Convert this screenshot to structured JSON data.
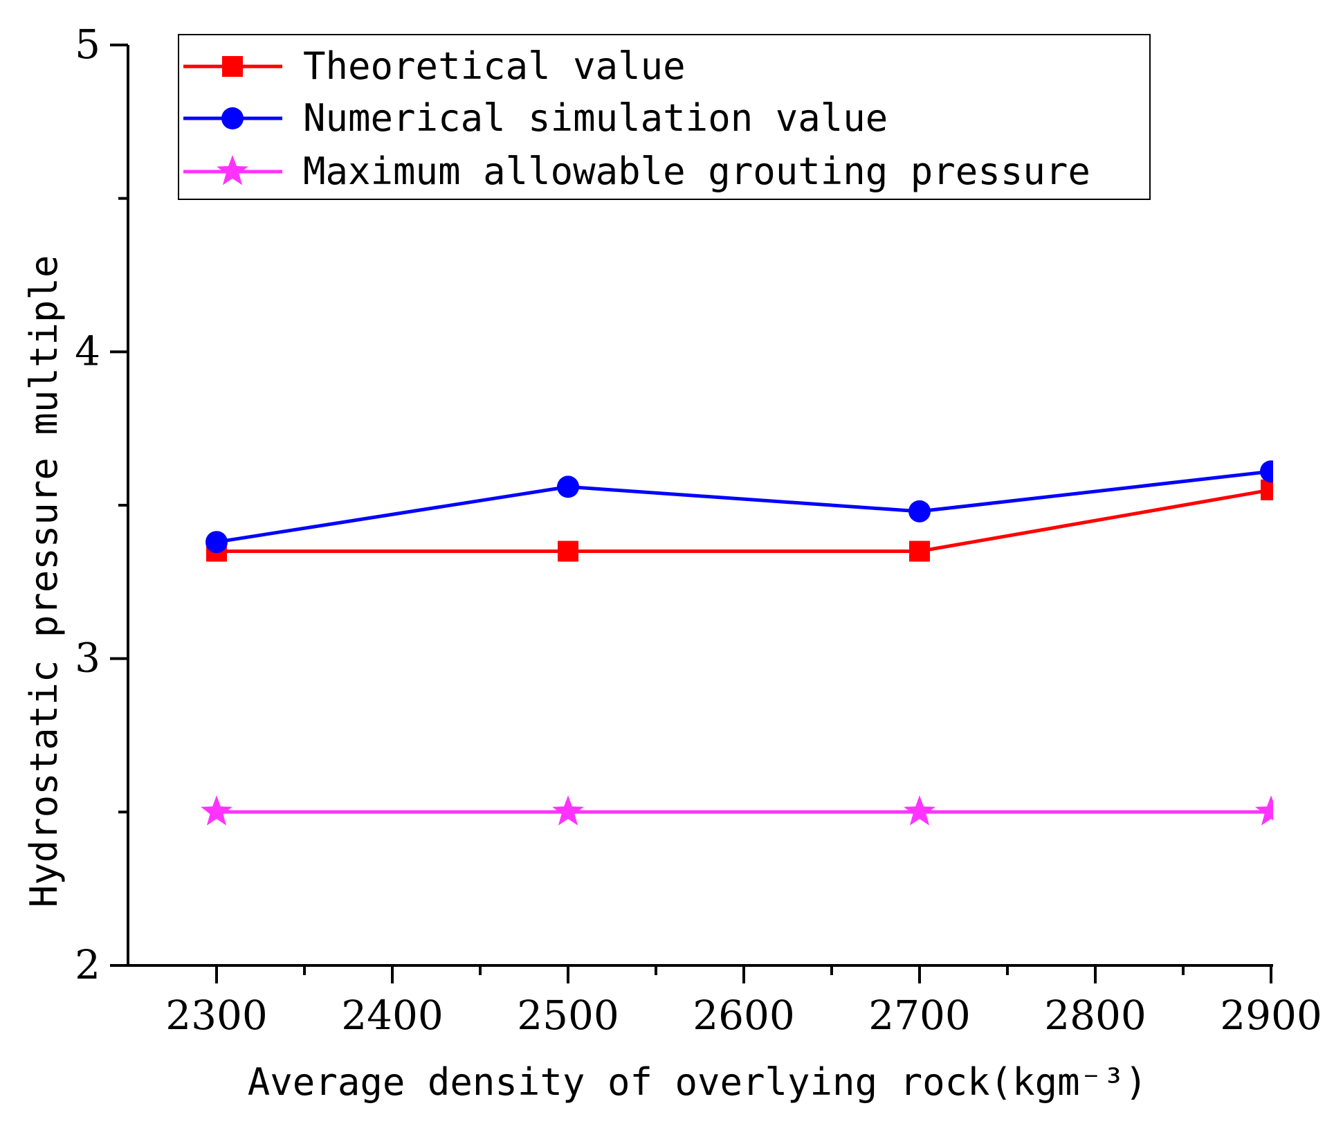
{
  "chart_data": {
    "type": "line",
    "title": "",
    "xlabel": "Average density of overlying rock(kgm⁻³)",
    "ylabel": "Hydrostatic pressure multiple",
    "x": [
      2300,
      2500,
      2700,
      2900
    ],
    "xlim": [
      2250,
      2900
    ],
    "ylim": [
      2,
      5
    ],
    "xticks": [
      2300,
      2400,
      2500,
      2600,
      2700,
      2800,
      2900
    ],
    "yticks": [
      2,
      3,
      4,
      5
    ],
    "xtick_labels": [
      "2300",
      "2400",
      "2500",
      "2600",
      "2700",
      "2800",
      "2900"
    ],
    "ytick_labels": [
      "2",
      "3",
      "4",
      "5"
    ],
    "grid": false,
    "legend_position": "top-left",
    "series": [
      {
        "name": "Theoretical value",
        "color": "#ff0000",
        "marker": "square",
        "values": [
          3.35,
          3.35,
          3.35,
          3.55
        ]
      },
      {
        "name": "Numerical simulation value",
        "color": "#0000ff",
        "marker": "circle",
        "values": [
          3.38,
          3.56,
          3.48,
          3.61
        ]
      },
      {
        "name": "Maximum allowable grouting pressure",
        "color": "#ff33ff",
        "marker": "star",
        "values": [
          2.5,
          2.5,
          2.5,
          2.5
        ]
      }
    ]
  }
}
